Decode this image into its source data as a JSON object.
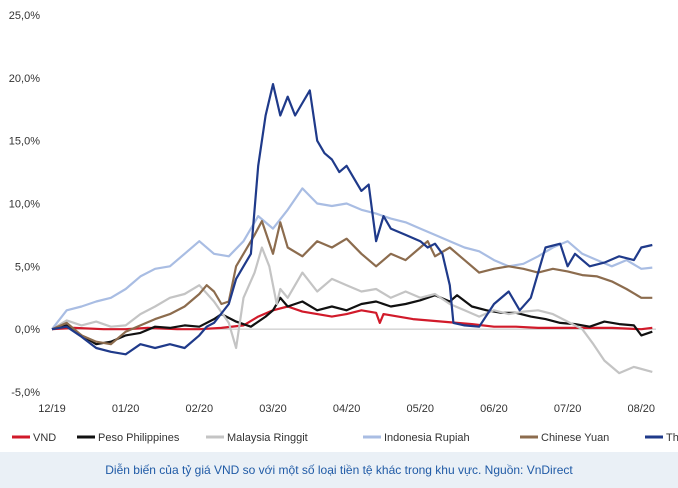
{
  "caption": "Diễn biến của tỷ giá VND so với một số loại tiền tệ khác trong khu vực. Nguồn: VnDirect",
  "chart_data": {
    "type": "line",
    "x_ticks": [
      "12/19",
      "01/20",
      "02/20",
      "03/20",
      "04/20",
      "05/20",
      "06/20",
      "07/20",
      "08/20"
    ],
    "y_ticks": [
      "25,0%",
      "20,0%",
      "15,0%",
      "10,0%",
      "5,0%",
      "0,0%",
      "-5,0%"
    ],
    "ylim": [
      -5,
      25
    ],
    "xlim": [
      0,
      8.2
    ],
    "grid": false,
    "legend_position": "bottom",
    "series": [
      {
        "name": "VND",
        "color": "#d11a2a",
        "points": [
          [
            0,
            0
          ],
          [
            0.3,
            0.1
          ],
          [
            0.7,
            0
          ],
          [
            1,
            0
          ],
          [
            1.3,
            0.1
          ],
          [
            1.7,
            0
          ],
          [
            2,
            0
          ],
          [
            2.3,
            0.1
          ],
          [
            2.6,
            0.3
          ],
          [
            2.8,
            1.0
          ],
          [
            3.0,
            1.5
          ],
          [
            3.2,
            1.8
          ],
          [
            3.4,
            1.4
          ],
          [
            3.6,
            1.2
          ],
          [
            3.8,
            1.0
          ],
          [
            4.0,
            1.2
          ],
          [
            4.2,
            1.5
          ],
          [
            4.4,
            1.3
          ],
          [
            4.45,
            0.5
          ],
          [
            4.5,
            1.2
          ],
          [
            4.7,
            1.0
          ],
          [
            4.9,
            0.8
          ],
          [
            5.1,
            0.7
          ],
          [
            5.3,
            0.6
          ],
          [
            5.5,
            0.5
          ],
          [
            5.7,
            0.4
          ],
          [
            6.0,
            0.2
          ],
          [
            6.3,
            0.2
          ],
          [
            6.6,
            0.1
          ],
          [
            7.0,
            0.1
          ],
          [
            7.3,
            0.1
          ],
          [
            7.6,
            0.1
          ],
          [
            8.0,
            0
          ],
          [
            8.15,
            0.1
          ]
        ]
      },
      {
        "name": "Peso Philippines",
        "color": "#111111",
        "points": [
          [
            0,
            0
          ],
          [
            0.2,
            0.3
          ],
          [
            0.4,
            -0.5
          ],
          [
            0.6,
            -1.2
          ],
          [
            0.8,
            -1.0
          ],
          [
            1.0,
            -0.5
          ],
          [
            1.2,
            -0.3
          ],
          [
            1.4,
            0.2
          ],
          [
            1.6,
            0.1
          ],
          [
            1.8,
            0.3
          ],
          [
            2.0,
            0.2
          ],
          [
            2.2,
            0.8
          ],
          [
            2.3,
            1.2
          ],
          [
            2.5,
            0.6
          ],
          [
            2.7,
            0.2
          ],
          [
            2.9,
            1.0
          ],
          [
            3.0,
            1.5
          ],
          [
            3.1,
            2.5
          ],
          [
            3.2,
            1.8
          ],
          [
            3.4,
            2.2
          ],
          [
            3.6,
            1.5
          ],
          [
            3.8,
            1.8
          ],
          [
            4.0,
            1.5
          ],
          [
            4.2,
            2.0
          ],
          [
            4.4,
            2.2
          ],
          [
            4.6,
            1.8
          ],
          [
            4.8,
            2.0
          ],
          [
            5.0,
            2.3
          ],
          [
            5.2,
            2.7
          ],
          [
            5.4,
            2.2
          ],
          [
            5.5,
            2.7
          ],
          [
            5.7,
            1.8
          ],
          [
            5.9,
            1.5
          ],
          [
            6.1,
            1.3
          ],
          [
            6.3,
            1.3
          ],
          [
            6.5,
            1.0
          ],
          [
            6.7,
            0.8
          ],
          [
            6.9,
            0.5
          ],
          [
            7.1,
            0.4
          ],
          [
            7.3,
            0.2
          ],
          [
            7.5,
            0.6
          ],
          [
            7.7,
            0.4
          ],
          [
            7.9,
            0.3
          ],
          [
            8.0,
            -0.5
          ],
          [
            8.15,
            -0.2
          ]
        ]
      },
      {
        "name": "Malaysia Ringgit",
        "color": "#c4c4c4",
        "points": [
          [
            0,
            0
          ],
          [
            0.2,
            0.7
          ],
          [
            0.4,
            0.3
          ],
          [
            0.6,
            0.6
          ],
          [
            0.8,
            0.2
          ],
          [
            1.0,
            0.3
          ],
          [
            1.2,
            1.2
          ],
          [
            1.4,
            1.8
          ],
          [
            1.6,
            2.5
          ],
          [
            1.8,
            2.8
          ],
          [
            2.0,
            3.5
          ],
          [
            2.2,
            2.2
          ],
          [
            2.4,
            0.5
          ],
          [
            2.5,
            -1.5
          ],
          [
            2.6,
            2.5
          ],
          [
            2.75,
            4.5
          ],
          [
            2.85,
            6.5
          ],
          [
            2.95,
            5.0
          ],
          [
            3.05,
            2.0
          ],
          [
            3.1,
            3.2
          ],
          [
            3.2,
            2.5
          ],
          [
            3.4,
            4.5
          ],
          [
            3.6,
            3.0
          ],
          [
            3.8,
            4.0
          ],
          [
            4.0,
            3.5
          ],
          [
            4.2,
            3.0
          ],
          [
            4.4,
            3.2
          ],
          [
            4.6,
            2.5
          ],
          [
            4.8,
            3.0
          ],
          [
            5.0,
            2.5
          ],
          [
            5.2,
            2.8
          ],
          [
            5.4,
            2.0
          ],
          [
            5.6,
            1.5
          ],
          [
            5.8,
            1.0
          ],
          [
            6.0,
            1.5
          ],
          [
            6.2,
            1.2
          ],
          [
            6.4,
            1.4
          ],
          [
            6.6,
            1.5
          ],
          [
            6.8,
            1.2
          ],
          [
            7.0,
            0.6
          ],
          [
            7.2,
            0.0
          ],
          [
            7.35,
            -1.2
          ],
          [
            7.5,
            -2.5
          ],
          [
            7.7,
            -3.5
          ],
          [
            7.9,
            -3.0
          ],
          [
            8.15,
            -3.4
          ]
        ]
      },
      {
        "name": "Indonesia Rupiah",
        "color": "#a9bde3",
        "points": [
          [
            0,
            0
          ],
          [
            0.2,
            1.5
          ],
          [
            0.4,
            1.8
          ],
          [
            0.6,
            2.2
          ],
          [
            0.8,
            2.5
          ],
          [
            1.0,
            3.2
          ],
          [
            1.2,
            4.2
          ],
          [
            1.4,
            4.8
          ],
          [
            1.6,
            5.0
          ],
          [
            1.8,
            6.0
          ],
          [
            2.0,
            7.0
          ],
          [
            2.2,
            6.0
          ],
          [
            2.4,
            5.8
          ],
          [
            2.6,
            7.0
          ],
          [
            2.8,
            9.0
          ],
          [
            3.0,
            8.0
          ],
          [
            3.2,
            9.5
          ],
          [
            3.4,
            11.2
          ],
          [
            3.6,
            10.0
          ],
          [
            3.8,
            9.8
          ],
          [
            4.0,
            10.0
          ],
          [
            4.2,
            9.5
          ],
          [
            4.4,
            9.2
          ],
          [
            4.6,
            8.8
          ],
          [
            4.8,
            8.5
          ],
          [
            5.0,
            8.0
          ],
          [
            5.2,
            7.5
          ],
          [
            5.4,
            7.0
          ],
          [
            5.6,
            6.5
          ],
          [
            5.8,
            6.2
          ],
          [
            6.0,
            5.5
          ],
          [
            6.2,
            5.0
          ],
          [
            6.4,
            5.2
          ],
          [
            6.6,
            5.8
          ],
          [
            6.8,
            6.5
          ],
          [
            7.0,
            7.0
          ],
          [
            7.2,
            6.0
          ],
          [
            7.4,
            5.5
          ],
          [
            7.6,
            5.0
          ],
          [
            7.8,
            5.5
          ],
          [
            8.0,
            4.8
          ],
          [
            8.15,
            4.9
          ]
        ]
      },
      {
        "name": "Chinese Yuan",
        "color": "#8c6c4e",
        "points": [
          [
            0,
            0
          ],
          [
            0.2,
            0.5
          ],
          [
            0.4,
            -0.5
          ],
          [
            0.6,
            -1.0
          ],
          [
            0.8,
            -1.2
          ],
          [
            1.0,
            -0.2
          ],
          [
            1.2,
            0.3
          ],
          [
            1.4,
            0.8
          ],
          [
            1.6,
            1.2
          ],
          [
            1.8,
            1.8
          ],
          [
            2.0,
            2.8
          ],
          [
            2.1,
            3.5
          ],
          [
            2.2,
            3.0
          ],
          [
            2.3,
            2.0
          ],
          [
            2.4,
            2.2
          ],
          [
            2.5,
            5.0
          ],
          [
            2.6,
            6.0
          ],
          [
            2.75,
            7.5
          ],
          [
            2.85,
            8.6
          ],
          [
            3.0,
            6.0
          ],
          [
            3.1,
            8.5
          ],
          [
            3.2,
            6.5
          ],
          [
            3.4,
            5.8
          ],
          [
            3.6,
            7.0
          ],
          [
            3.8,
            6.5
          ],
          [
            4.0,
            7.2
          ],
          [
            4.2,
            6.0
          ],
          [
            4.4,
            5.0
          ],
          [
            4.6,
            6.0
          ],
          [
            4.8,
            5.5
          ],
          [
            5.0,
            6.5
          ],
          [
            5.1,
            7.0
          ],
          [
            5.2,
            5.8
          ],
          [
            5.4,
            6.5
          ],
          [
            5.6,
            5.5
          ],
          [
            5.8,
            4.5
          ],
          [
            6.0,
            4.8
          ],
          [
            6.2,
            5.0
          ],
          [
            6.4,
            4.8
          ],
          [
            6.6,
            4.5
          ],
          [
            6.8,
            4.8
          ],
          [
            7.0,
            4.6
          ],
          [
            7.2,
            4.3
          ],
          [
            7.4,
            4.2
          ],
          [
            7.6,
            3.8
          ],
          [
            7.8,
            3.2
          ],
          [
            8.0,
            2.5
          ],
          [
            8.15,
            2.5
          ]
        ]
      },
      {
        "name": "Thai Baht",
        "color": "#1f3a8a",
        "points": [
          [
            0,
            0
          ],
          [
            0.2,
            0.2
          ],
          [
            0.4,
            -0.6
          ],
          [
            0.6,
            -1.5
          ],
          [
            0.8,
            -1.8
          ],
          [
            1.0,
            -2.0
          ],
          [
            1.2,
            -1.2
          ],
          [
            1.4,
            -1.5
          ],
          [
            1.6,
            -1.2
          ],
          [
            1.8,
            -1.5
          ],
          [
            2.0,
            -0.5
          ],
          [
            2.1,
            0.2
          ],
          [
            2.2,
            0.5
          ],
          [
            2.4,
            2.0
          ],
          [
            2.5,
            4.0
          ],
          [
            2.6,
            5.0
          ],
          [
            2.7,
            6.0
          ],
          [
            2.8,
            13.0
          ],
          [
            2.9,
            17.0
          ],
          [
            3.0,
            19.5
          ],
          [
            3.1,
            17.0
          ],
          [
            3.2,
            18.5
          ],
          [
            3.3,
            17.0
          ],
          [
            3.4,
            18.0
          ],
          [
            3.5,
            19.0
          ],
          [
            3.6,
            15.0
          ],
          [
            3.7,
            14.0
          ],
          [
            3.8,
            13.5
          ],
          [
            3.9,
            12.5
          ],
          [
            4.0,
            13.0
          ],
          [
            4.1,
            12.0
          ],
          [
            4.2,
            11.0
          ],
          [
            4.3,
            11.5
          ],
          [
            4.4,
            7.0
          ],
          [
            4.5,
            9.0
          ],
          [
            4.6,
            8.0
          ],
          [
            4.8,
            7.5
          ],
          [
            5.0,
            7.0
          ],
          [
            5.1,
            6.5
          ],
          [
            5.2,
            6.8
          ],
          [
            5.3,
            6.0
          ],
          [
            5.4,
            3.5
          ],
          [
            5.45,
            0.5
          ],
          [
            5.6,
            0.3
          ],
          [
            5.8,
            0.2
          ],
          [
            6.0,
            2.0
          ],
          [
            6.2,
            3.0
          ],
          [
            6.35,
            1.5
          ],
          [
            6.5,
            2.5
          ],
          [
            6.7,
            6.5
          ],
          [
            6.9,
            6.8
          ],
          [
            7.0,
            5.0
          ],
          [
            7.1,
            6.0
          ],
          [
            7.3,
            5.0
          ],
          [
            7.5,
            5.3
          ],
          [
            7.7,
            5.8
          ],
          [
            7.9,
            5.5
          ],
          [
            8.0,
            6.5
          ],
          [
            8.15,
            6.7
          ]
        ]
      }
    ]
  }
}
